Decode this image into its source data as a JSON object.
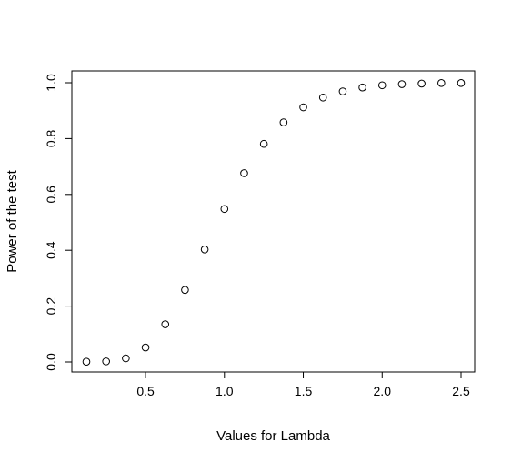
{
  "chart_data": {
    "type": "scatter",
    "title": "",
    "xlabel": "Values for Lambda",
    "ylabel": "Power of the test",
    "xlim": [
      0.125,
      2.5
    ],
    "ylim": [
      0,
      1
    ],
    "xticks": [
      0.5,
      1.0,
      1.5,
      2.0,
      2.5
    ],
    "xtick_labels": [
      "0.5",
      "1.0",
      "1.5",
      "2.0",
      "2.5"
    ],
    "yticks": [
      0.0,
      0.2,
      0.4,
      0.6,
      0.8,
      1.0
    ],
    "ytick_labels": [
      "0.0",
      "0.2",
      "0.4",
      "0.6",
      "0.8",
      "1.0"
    ],
    "grid": false,
    "marker": "open-circle",
    "point_color": "#000000",
    "series": [
      {
        "x": [
          0.125,
          0.25,
          0.375,
          0.5,
          0.625,
          0.75,
          0.875,
          1.0,
          1.125,
          1.25,
          1.375,
          1.5,
          1.625,
          1.75,
          1.875,
          2.0,
          2.125,
          2.25,
          2.375,
          2.5
        ],
        "values": [
          0.001,
          0.002,
          0.013,
          0.052,
          0.135,
          0.258,
          0.403,
          0.548,
          0.676,
          0.781,
          0.858,
          0.912,
          0.947,
          0.969,
          0.983,
          0.991,
          0.995,
          0.997,
          0.999,
          0.999
        ]
      }
    ]
  }
}
